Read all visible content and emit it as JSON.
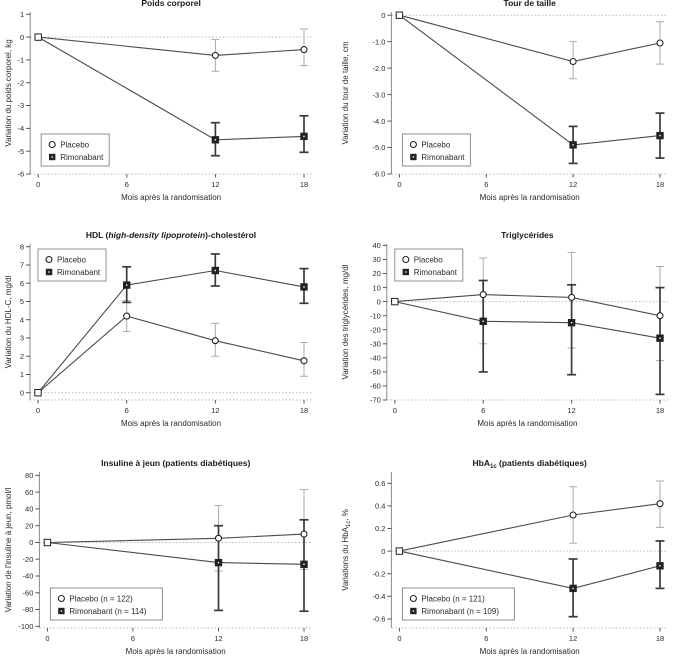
{
  "figure": {
    "background": "#ffffff",
    "layout": "2 columns x 3 rows of line charts"
  },
  "colors": {
    "line": "#4b4b4b",
    "marker": "#222222",
    "err_light": "#a9ada9",
    "err_dark": "#3a3a3a",
    "zero_line": "#b4bcb4",
    "axis": "#8a8a8a",
    "tick": "#555555",
    "text": "#2a2a2a",
    "title": "#1a1a1a",
    "legend_border": "#8f8f8f",
    "marker_fill_open": "#ffffff"
  },
  "chart_data": [
    {
      "name": "poids-corporel",
      "type": "line",
      "title": "Poids corporel",
      "title_parts": [
        {
          "t": "Poids corporel"
        }
      ],
      "ylabel": "Variation du poids corporel, kg",
      "ylabel_parts": [
        {
          "t": "Variation du poids corporel, kg"
        }
      ],
      "xlabel": "Mois après la randomisation",
      "ylim": [
        -6,
        1.1
      ],
      "yticks": [
        {
          "v": 1,
          "label": "1"
        },
        {
          "v": 0,
          "label": "0"
        },
        {
          "v": -1,
          "label": "-1"
        },
        {
          "v": -2,
          "label": "-2"
        },
        {
          "v": -3,
          "label": "-3"
        },
        {
          "v": -4,
          "label": "-4"
        },
        {
          "v": -5,
          "label": "-5"
        },
        {
          "v": -6,
          "label": "-6"
        }
      ],
      "xticks": [
        {
          "v": 0,
          "label": "0"
        },
        {
          "v": 6,
          "label": "6"
        },
        {
          "v": 12,
          "label": "12"
        },
        {
          "v": 18,
          "label": "18"
        }
      ],
      "zero_line": true,
      "legend": {
        "position": "bottom-left",
        "items": [
          {
            "marker": "circle-open",
            "label": "Placebo"
          },
          {
            "marker": "square-filled",
            "label": "Rimonabant"
          }
        ]
      },
      "series": [
        {
          "key": "placebo",
          "name": "Placebo",
          "marker": "circle-open",
          "points": [
            {
              "x": 0,
              "y": 0
            },
            {
              "x": 12,
              "y": -0.8,
              "lo": -1.5,
              "hi": -0.1
            },
            {
              "x": 18,
              "y": -0.55,
              "lo": -1.25,
              "hi": 0.35
            }
          ]
        },
        {
          "key": "rimonabant",
          "name": "Rimonabant",
          "marker": "square-filled",
          "points": [
            {
              "x": 0,
              "y": 0
            },
            {
              "x": 12,
              "y": -4.5,
              "lo": -5.2,
              "hi": -3.75
            },
            {
              "x": 18,
              "y": -4.35,
              "lo": -5.05,
              "hi": -3.45
            }
          ]
        }
      ]
    },
    {
      "name": "tour-de-taille",
      "type": "line",
      "title": "Tour de taille",
      "title_parts": [
        {
          "t": "Tour de taille"
        }
      ],
      "ylabel": "Variation du tour de taille, cm",
      "ylabel_parts": [
        {
          "t": "Variation du tour de taille, cm"
        }
      ],
      "xlabel": "Mois après la randomisation",
      "ylim": [
        -6,
        0.12
      ],
      "yticks": [
        {
          "v": 0,
          "label": "0"
        },
        {
          "v": -1,
          "label": "-1.0"
        },
        {
          "v": -2,
          "label": "-2.0"
        },
        {
          "v": -3,
          "label": "-3.0"
        },
        {
          "v": -4,
          "label": "-4.0"
        },
        {
          "v": -5,
          "label": "-5.0"
        },
        {
          "v": -6,
          "label": "-6.0"
        }
      ],
      "xticks": [
        {
          "v": 0,
          "label": "0"
        },
        {
          "v": 6,
          "label": "6"
        },
        {
          "v": 12,
          "label": "12"
        },
        {
          "v": 18,
          "label": "18"
        }
      ],
      "zero_line": true,
      "legend": {
        "position": "bottom-left",
        "items": [
          {
            "marker": "circle-open",
            "label": "Placebo"
          },
          {
            "marker": "square-filled",
            "label": "Rimonabant"
          }
        ]
      },
      "series": [
        {
          "key": "placebo",
          "name": "Placebo",
          "marker": "circle-open",
          "points": [
            {
              "x": 0,
              "y": 0
            },
            {
              "x": 12,
              "y": -1.75,
              "lo": -2.4,
              "hi": -1.0
            },
            {
              "x": 18,
              "y": -1.05,
              "lo": -1.85,
              "hi": -0.25
            }
          ]
        },
        {
          "key": "rimonabant",
          "name": "Rimonabant",
          "marker": "square-filled",
          "points": [
            {
              "x": 0,
              "y": 0
            },
            {
              "x": 12,
              "y": -4.9,
              "lo": -5.6,
              "hi": -4.2
            },
            {
              "x": 18,
              "y": -4.55,
              "lo": -5.4,
              "hi": -3.7
            }
          ]
        }
      ]
    },
    {
      "name": "hdl-cholesterol",
      "type": "line",
      "title": "HDL (high-density lipoprotein)-cholestérol",
      "title_parts": [
        {
          "t": "HDL ("
        },
        {
          "t": "high-density lipoprotein",
          "s": "i"
        },
        {
          "t": ")-cholestérol"
        }
      ],
      "ylabel": "Variation du HDL-C, mg/dl",
      "ylabel_parts": [
        {
          "t": "Variation du HDL-C, mg/dl"
        }
      ],
      "xlabel": "Mois après la randomisation",
      "ylim": [
        -0.4,
        8.15
      ],
      "yticks": [
        {
          "v": 8,
          "label": "8"
        },
        {
          "v": 7,
          "label": "7"
        },
        {
          "v": 6,
          "label": "6"
        },
        {
          "v": 5,
          "label": "5"
        },
        {
          "v": 4,
          "label": "4"
        },
        {
          "v": 3,
          "label": "3"
        },
        {
          "v": 2,
          "label": "2"
        },
        {
          "v": 1,
          "label": "1"
        },
        {
          "v": 0,
          "label": "0"
        }
      ],
      "xticks": [
        {
          "v": 0,
          "label": "0"
        },
        {
          "v": 6,
          "label": "6"
        },
        {
          "v": 12,
          "label": "12"
        },
        {
          "v": 18,
          "label": "18"
        }
      ],
      "zero_line": true,
      "legend": {
        "position": "top-left",
        "items": [
          {
            "marker": "circle-open",
            "label": "Placebo"
          },
          {
            "marker": "square-filled",
            "label": "Rimonabant"
          }
        ]
      },
      "series": [
        {
          "key": "placebo",
          "name": "Placebo",
          "marker": "circle-open",
          "points": [
            {
              "x": 0,
              "y": 0
            },
            {
              "x": 6,
              "y": 4.2,
              "lo": 3.35,
              "hi": 5.05
            },
            {
              "x": 12,
              "y": 2.85,
              "lo": 2.0,
              "hi": 3.8
            },
            {
              "x": 18,
              "y": 1.75,
              "lo": 0.9,
              "hi": 2.75
            }
          ]
        },
        {
          "key": "rimonabant",
          "name": "Rimonabant",
          "marker": "square-filled",
          "points": [
            {
              "x": 0,
              "y": 0
            },
            {
              "x": 6,
              "y": 5.9,
              "lo": 4.95,
              "hi": 6.9
            },
            {
              "x": 12,
              "y": 6.7,
              "lo": 5.85,
              "hi": 7.6
            },
            {
              "x": 18,
              "y": 5.8,
              "lo": 4.9,
              "hi": 6.8
            }
          ]
        }
      ]
    },
    {
      "name": "triglycerides",
      "type": "line",
      "title": "Triglycérides",
      "title_parts": [
        {
          "t": "Triglycérides"
        }
      ],
      "ylabel": "Variation des triglycérides, mg/dl",
      "ylabel_parts": [
        {
          "t": "Variation des triglycérides, mg/dl"
        }
      ],
      "xlabel": "Mois après la randomisation",
      "ylim": [
        -70,
        41
      ],
      "yticks": [
        {
          "v": 40,
          "label": "40"
        },
        {
          "v": 30,
          "label": "30"
        },
        {
          "v": 20,
          "label": "20"
        },
        {
          "v": 10,
          "label": "10"
        },
        {
          "v": 0,
          "label": "0"
        },
        {
          "v": -10,
          "label": "-10"
        },
        {
          "v": -20,
          "label": "-20"
        },
        {
          "v": -30,
          "label": "-30"
        },
        {
          "v": -40,
          "label": "-40"
        },
        {
          "v": -50,
          "label": "-50"
        },
        {
          "v": -60,
          "label": "-60"
        },
        {
          "v": -70,
          "label": "-70"
        }
      ],
      "xticks": [
        {
          "v": 0,
          "label": "0"
        },
        {
          "v": 6,
          "label": "6"
        },
        {
          "v": 12,
          "label": "12"
        },
        {
          "v": 18,
          "label": "18"
        }
      ],
      "zero_line": true,
      "legend": {
        "position": "top-left",
        "items": [
          {
            "marker": "circle-open",
            "label": "Placebo"
          },
          {
            "marker": "square-filled",
            "label": "Rimonabant"
          }
        ]
      },
      "series": [
        {
          "key": "placebo",
          "name": "Placebo",
          "marker": "circle-open",
          "points": [
            {
              "x": 0,
              "y": 0
            },
            {
              "x": 6,
              "y": 5,
              "lo": -30,
              "hi": 31
            },
            {
              "x": 12,
              "y": 3,
              "lo": -33,
              "hi": 35
            },
            {
              "x": 18,
              "y": -10,
              "lo": -42,
              "hi": 25
            }
          ]
        },
        {
          "key": "rimonabant",
          "name": "Rimonabant",
          "marker": "square-filled",
          "points": [
            {
              "x": 0,
              "y": 0
            },
            {
              "x": 6,
              "y": -14,
              "lo": -50,
              "hi": 15
            },
            {
              "x": 12,
              "y": -15,
              "lo": -52,
              "hi": 12
            },
            {
              "x": 18,
              "y": -26,
              "lo": -66,
              "hi": 10
            }
          ]
        }
      ]
    },
    {
      "name": "insuline-a-jeun",
      "type": "line",
      "title": "Insuline à jeun (patients diabétiques)",
      "title_parts": [
        {
          "t": "Insuline à jeun (patients diabétiques)"
        }
      ],
      "ylabel": "Variation de l'insuline à jeun, pmol/l",
      "ylabel_parts": [
        {
          "t": "Variation de l'insuline à jeun, pmol/l"
        }
      ],
      "xlabel": "Mois après la randomisation",
      "ylim": [
        -102,
        84
      ],
      "yticks": [
        {
          "v": 80,
          "label": "80"
        },
        {
          "v": 60,
          "label": "60"
        },
        {
          "v": 40,
          "label": "40"
        },
        {
          "v": 20,
          "label": "20"
        },
        {
          "v": 0,
          "label": "0"
        },
        {
          "v": -20,
          "label": "-20"
        },
        {
          "v": -40,
          "label": "-40"
        },
        {
          "v": -60,
          "label": "-60"
        },
        {
          "v": -80,
          "label": "-80"
        },
        {
          "v": -100,
          "label": "-100"
        }
      ],
      "xticks": [
        {
          "v": 0,
          "label": "0"
        },
        {
          "v": 6,
          "label": "6"
        },
        {
          "v": 12,
          "label": "12"
        },
        {
          "v": 18,
          "label": "18"
        }
      ],
      "zero_line": true,
      "legend": {
        "position": "bottom-left",
        "items": [
          {
            "marker": "circle-open",
            "label": "Placebo (n = 122)"
          },
          {
            "marker": "square-filled",
            "label": "Rimonabant (n = 114)"
          }
        ]
      },
      "series": [
        {
          "key": "placebo",
          "name": "Placebo",
          "n": 122,
          "marker": "circle-open",
          "points": [
            {
              "x": 0,
              "y": 0
            },
            {
              "x": 12,
              "y": 5,
              "lo": -34,
              "hi": 44
            },
            {
              "x": 18,
              "y": 10,
              "lo": -32,
              "hi": 63
            }
          ]
        },
        {
          "key": "rimonabant",
          "name": "Rimonabant",
          "n": 114,
          "marker": "square-filled",
          "points": [
            {
              "x": 0,
              "y": 0
            },
            {
              "x": 12,
              "y": -24,
              "lo": -81,
              "hi": 20
            },
            {
              "x": 18,
              "y": -26,
              "lo": -82,
              "hi": 27
            }
          ]
        }
      ]
    },
    {
      "name": "hba1c",
      "type": "line",
      "title": "HbA1c (patients diabétiques)",
      "title_parts": [
        {
          "t": "HbA"
        },
        {
          "t": "1c",
          "s": "sub"
        },
        {
          "t": " (patients diabétiques)"
        }
      ],
      "ylabel": "Variations du HbA1c, %",
      "ylabel_parts": [
        {
          "t": "Variations du HbA"
        },
        {
          "t": "1c",
          "s": "sub"
        },
        {
          "t": ", %"
        }
      ],
      "xlabel": "Mois après la randomisation",
      "ylim": [
        -0.68,
        0.7
      ],
      "yticks": [
        {
          "v": 0.6,
          "label": "0.6"
        },
        {
          "v": 0.4,
          "label": "0.4"
        },
        {
          "v": 0.2,
          "label": "0.2"
        },
        {
          "v": 0,
          "label": "0"
        },
        {
          "v": -0.2,
          "label": "-0.2"
        },
        {
          "v": -0.4,
          "label": "-0.4"
        },
        {
          "v": -0.6,
          "label": "-0.6"
        }
      ],
      "xticks": [
        {
          "v": 0,
          "label": "0"
        },
        {
          "v": 6,
          "label": "6"
        },
        {
          "v": 12,
          "label": "12"
        },
        {
          "v": 18,
          "label": "18"
        }
      ],
      "zero_line": true,
      "legend": {
        "position": "bottom-left",
        "items": [
          {
            "marker": "circle-open",
            "label": "Placebo (n = 121)"
          },
          {
            "marker": "square-filled",
            "label": "Rimonabant (n = 109)"
          }
        ]
      },
      "series": [
        {
          "key": "placebo",
          "name": "Placebo",
          "n": 121,
          "marker": "circle-open",
          "points": [
            {
              "x": 0,
              "y": 0
            },
            {
              "x": 12,
              "y": 0.32,
              "lo": 0.07,
              "hi": 0.57
            },
            {
              "x": 18,
              "y": 0.42,
              "lo": 0.21,
              "hi": 0.62
            }
          ]
        },
        {
          "key": "rimonabant",
          "name": "Rimonabant",
          "n": 109,
          "marker": "square-filled",
          "points": [
            {
              "x": 0,
              "y": 0
            },
            {
              "x": 12,
              "y": -0.33,
              "lo": -0.58,
              "hi": -0.07
            },
            {
              "x": 18,
              "y": -0.13,
              "lo": -0.33,
              "hi": 0.09
            }
          ]
        }
      ]
    }
  ]
}
